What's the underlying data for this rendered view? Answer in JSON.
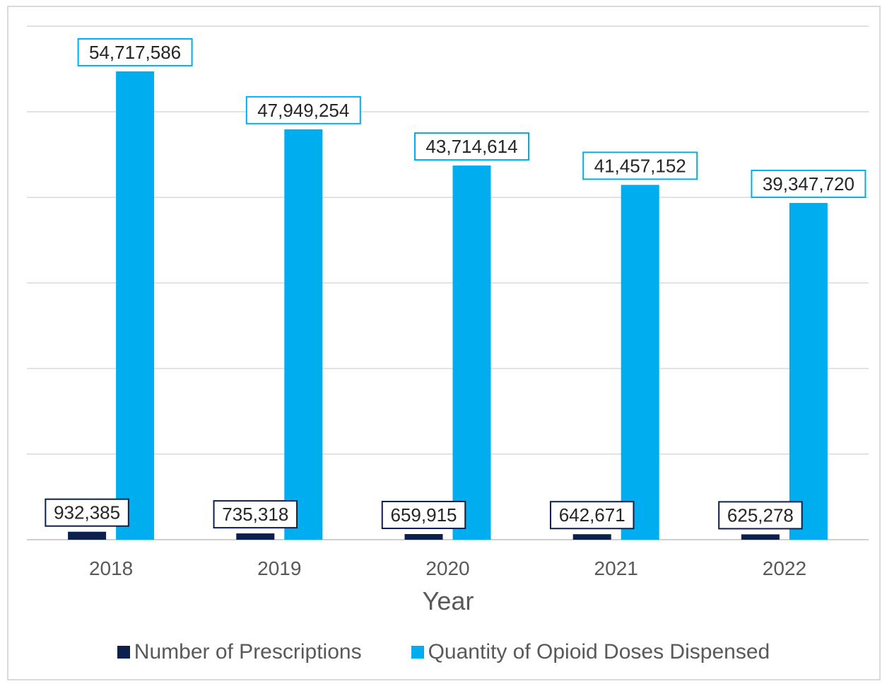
{
  "chart_data": {
    "type": "bar",
    "title": "",
    "xlabel": "Year",
    "ylabel": "",
    "categories": [
      "2018",
      "2019",
      "2020",
      "2021",
      "2022"
    ],
    "series": [
      {
        "name": "Number of Prescriptions",
        "color": "#0d1f4d",
        "values": [
          932385,
          735318,
          659915,
          642671,
          625278
        ],
        "labels": [
          "932,385",
          "735,318",
          "659,915",
          "642,671",
          "625,278"
        ]
      },
      {
        "name": "Quantity of Opioid Doses Dispensed",
        "color": "#00aeef",
        "values": [
          54717586,
          47949254,
          43714614,
          41457152,
          39347720
        ],
        "labels": [
          "54,717,586",
          "47,949,254",
          "43,714,614",
          "41,457,152",
          "39,347,720"
        ]
      }
    ],
    "ylim": [
      0,
      60000000
    ],
    "gridlines": true,
    "y_axis_labels_shown": false,
    "legend_position": "bottom"
  }
}
